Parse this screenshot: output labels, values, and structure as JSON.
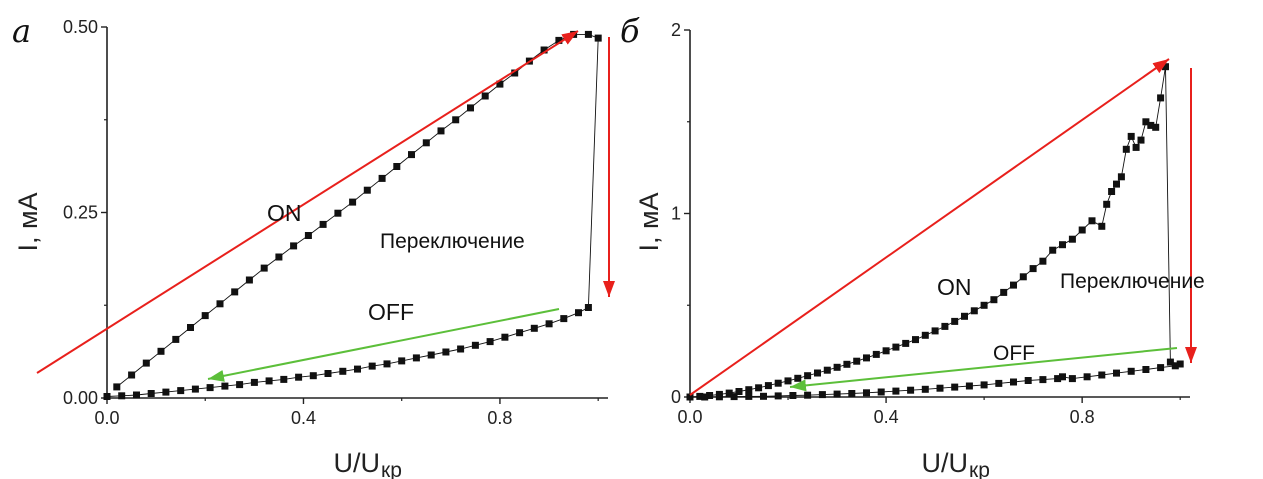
{
  "colors": {
    "data": "#111111",
    "on_arrow": "#e8201c",
    "off_arrow": "#5cbf3a",
    "axis": "#222222"
  },
  "chart_data": [
    {
      "type": "line",
      "panel_label": "а",
      "xlabel": "U/U",
      "xlabel_sub": "кр",
      "ylabel": "I, мА",
      "xlim": [
        0,
        1.02
      ],
      "ylim": [
        0,
        0.5
      ],
      "x_ticks": [
        "0.0",
        "0.4",
        "0.8"
      ],
      "x_tick_values": [
        0,
        0.4,
        0.8
      ],
      "y_ticks": [
        "0.00",
        "0.25",
        "0.50"
      ],
      "y_tick_values": [
        0,
        0.25,
        0.5
      ],
      "annotations": {
        "on": "ON",
        "off": "OFF",
        "switch": "Переключение"
      },
      "series": [
        {
          "x": [
            0.02,
            0.05,
            0.08,
            0.11,
            0.14,
            0.17,
            0.2,
            0.23,
            0.26,
            0.29,
            0.32,
            0.35,
            0.38,
            0.41,
            0.44,
            0.47,
            0.5,
            0.53,
            0.56,
            0.59,
            0.62,
            0.65,
            0.68,
            0.71,
            0.74,
            0.77,
            0.8,
            0.83,
            0.86,
            0.89,
            0.92,
            0.95,
            0.98,
            1.0,
            0.98,
            0.96,
            0.93,
            0.9,
            0.87,
            0.84,
            0.81,
            0.78,
            0.75,
            0.72,
            0.69,
            0.66,
            0.63,
            0.6,
            0.57,
            0.54,
            0.51,
            0.48,
            0.45,
            0.42,
            0.39,
            0.36,
            0.33,
            0.3,
            0.27,
            0.24,
            0.21,
            0.18,
            0.15,
            0.12,
            0.09,
            0.06,
            0.03,
            0.0
          ],
          "y": [
            0.015,
            0.031,
            0.047,
            0.063,
            0.079,
            0.095,
            0.111,
            0.127,
            0.143,
            0.159,
            0.175,
            0.19,
            0.205,
            0.219,
            0.234,
            0.249,
            0.264,
            0.28,
            0.296,
            0.312,
            0.328,
            0.344,
            0.36,
            0.375,
            0.391,
            0.407,
            0.423,
            0.438,
            0.454,
            0.469,
            0.482,
            0.49,
            0.49,
            0.485,
            0.122,
            0.115,
            0.107,
            0.1,
            0.094,
            0.088,
            0.082,
            0.076,
            0.071,
            0.066,
            0.062,
            0.058,
            0.054,
            0.05,
            0.046,
            0.043,
            0.039,
            0.036,
            0.033,
            0.03,
            0.028,
            0.025,
            0.023,
            0.021,
            0.018,
            0.016,
            0.014,
            0.012,
            0.01,
            0.008,
            0.006,
            0.004,
            0.003,
            0.002
          ]
        }
      ]
    },
    {
      "type": "line",
      "panel_label": "б",
      "xlabel": "U/U",
      "xlabel_sub": "кр",
      "ylabel": "I, мА",
      "xlim": [
        0,
        1.02
      ],
      "ylim": [
        0,
        2
      ],
      "x_ticks": [
        "0.0",
        "0.4",
        "0.8"
      ],
      "x_tick_values": [
        0,
        0.4,
        0.8
      ],
      "y_ticks": [
        "0",
        "1",
        "2"
      ],
      "y_tick_values": [
        0,
        1,
        2
      ],
      "annotations": {
        "on": "ON",
        "off": "OFF",
        "switch": "Переключение"
      },
      "series": [
        {
          "x": [
            0.0,
            0.02,
            0.04,
            0.06,
            0.08,
            0.1,
            0.12,
            0.14,
            0.16,
            0.18,
            0.2,
            0.22,
            0.24,
            0.26,
            0.28,
            0.3,
            0.32,
            0.34,
            0.36,
            0.38,
            0.4,
            0.42,
            0.44,
            0.46,
            0.48,
            0.5,
            0.52,
            0.54,
            0.56,
            0.58,
            0.6,
            0.62,
            0.64,
            0.66,
            0.68,
            0.7,
            0.72,
            0.74,
            0.76,
            0.78,
            0.8,
            0.82,
            0.84,
            0.85,
            0.86,
            0.87,
            0.88,
            0.89,
            0.9,
            0.91,
            0.92,
            0.93,
            0.94,
            0.95,
            0.96,
            0.97,
            0.98,
            1.0,
            0.99,
            0.96,
            0.93,
            0.9,
            0.87,
            0.84,
            0.81,
            0.78,
            0.76,
            0.75,
            0.72,
            0.69,
            0.66,
            0.63,
            0.6,
            0.57,
            0.54,
            0.51,
            0.48,
            0.45,
            0.42,
            0.39,
            0.36,
            0.33,
            0.3,
            0.27,
            0.24,
            0.21,
            0.18,
            0.15,
            0.12,
            0.09,
            0.06,
            0.03,
            0.0
          ],
          "y": [
            0.0,
            0.003,
            0.008,
            0.014,
            0.021,
            0.03,
            0.04,
            0.05,
            0.062,
            0.075,
            0.088,
            0.102,
            0.116,
            0.131,
            0.146,
            0.162,
            0.178,
            0.195,
            0.213,
            0.232,
            0.252,
            0.272,
            0.292,
            0.313,
            0.336,
            0.36,
            0.385,
            0.412,
            0.44,
            0.47,
            0.5,
            0.53,
            0.57,
            0.61,
            0.655,
            0.7,
            0.74,
            0.8,
            0.83,
            0.86,
            0.91,
            0.96,
            0.93,
            1.05,
            1.12,
            1.16,
            1.2,
            1.35,
            1.42,
            1.36,
            1.4,
            1.5,
            1.48,
            1.47,
            1.63,
            1.8,
            0.19,
            0.18,
            0.17,
            0.16,
            0.15,
            0.14,
            0.13,
            0.12,
            0.11,
            0.1,
            0.11,
            0.1,
            0.095,
            0.09,
            0.082,
            0.074,
            0.066,
            0.06,
            0.054,
            0.048,
            0.042,
            0.037,
            0.032,
            0.027,
            0.023,
            0.019,
            0.016,
            0.013,
            0.01,
            0.008,
            0.006,
            0.004,
            0.003,
            0.002,
            0.001,
            0.0,
            0.0
          ]
        }
      ]
    }
  ]
}
